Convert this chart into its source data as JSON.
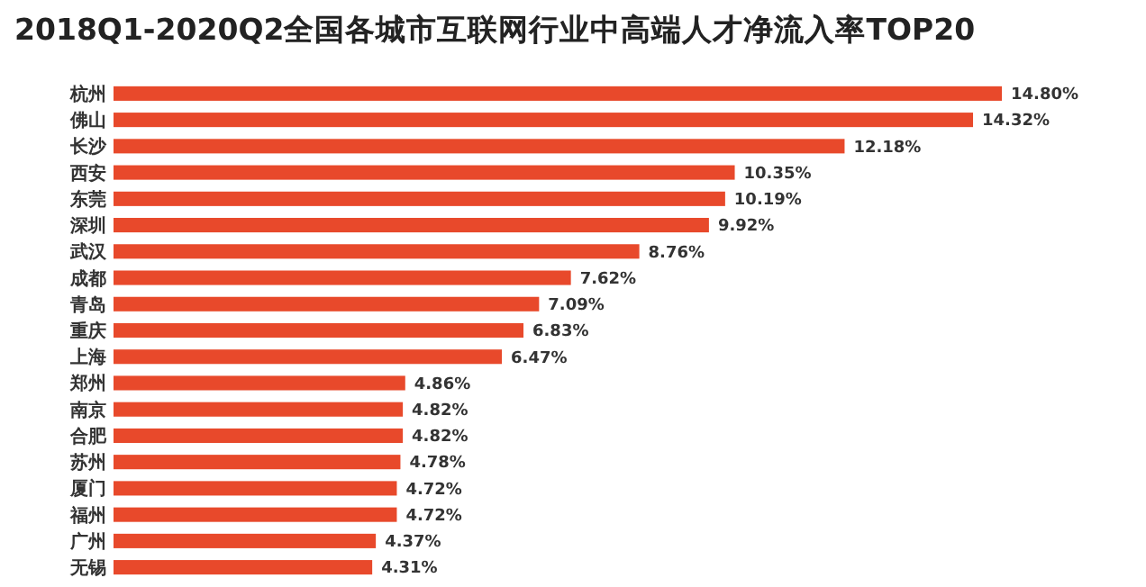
{
  "chart_data": {
    "type": "bar",
    "orientation": "horizontal",
    "title": "2018Q1-2020Q2全国各城市互联网行业中高端人才净流入率TOP20",
    "categories": [
      "杭州",
      "佛山",
      "长沙",
      "西安",
      "东莞",
      "深圳",
      "武汉",
      "成都",
      "青岛",
      "重庆",
      "上海",
      "郑州",
      "南京",
      "合肥",
      "苏州",
      "厦门",
      "福州",
      "广州",
      "无锡"
    ],
    "values": [
      14.8,
      14.32,
      12.18,
      10.35,
      10.19,
      9.92,
      8.76,
      7.62,
      7.09,
      6.83,
      6.47,
      4.86,
      4.82,
      4.82,
      4.78,
      4.72,
      4.72,
      4.37,
      4.31
    ],
    "value_labels": [
      "14.80%",
      "14.32%",
      "12.18%",
      "10.35%",
      "10.19%",
      "9.92%",
      "8.76%",
      "7.62%",
      "7.09%",
      "6.83%",
      "6.47%",
      "4.86%",
      "4.82%",
      "4.82%",
      "4.78%",
      "4.72%",
      "4.72%",
      "4.37%",
      "4.31%"
    ],
    "color": "#e8492b"
  }
}
